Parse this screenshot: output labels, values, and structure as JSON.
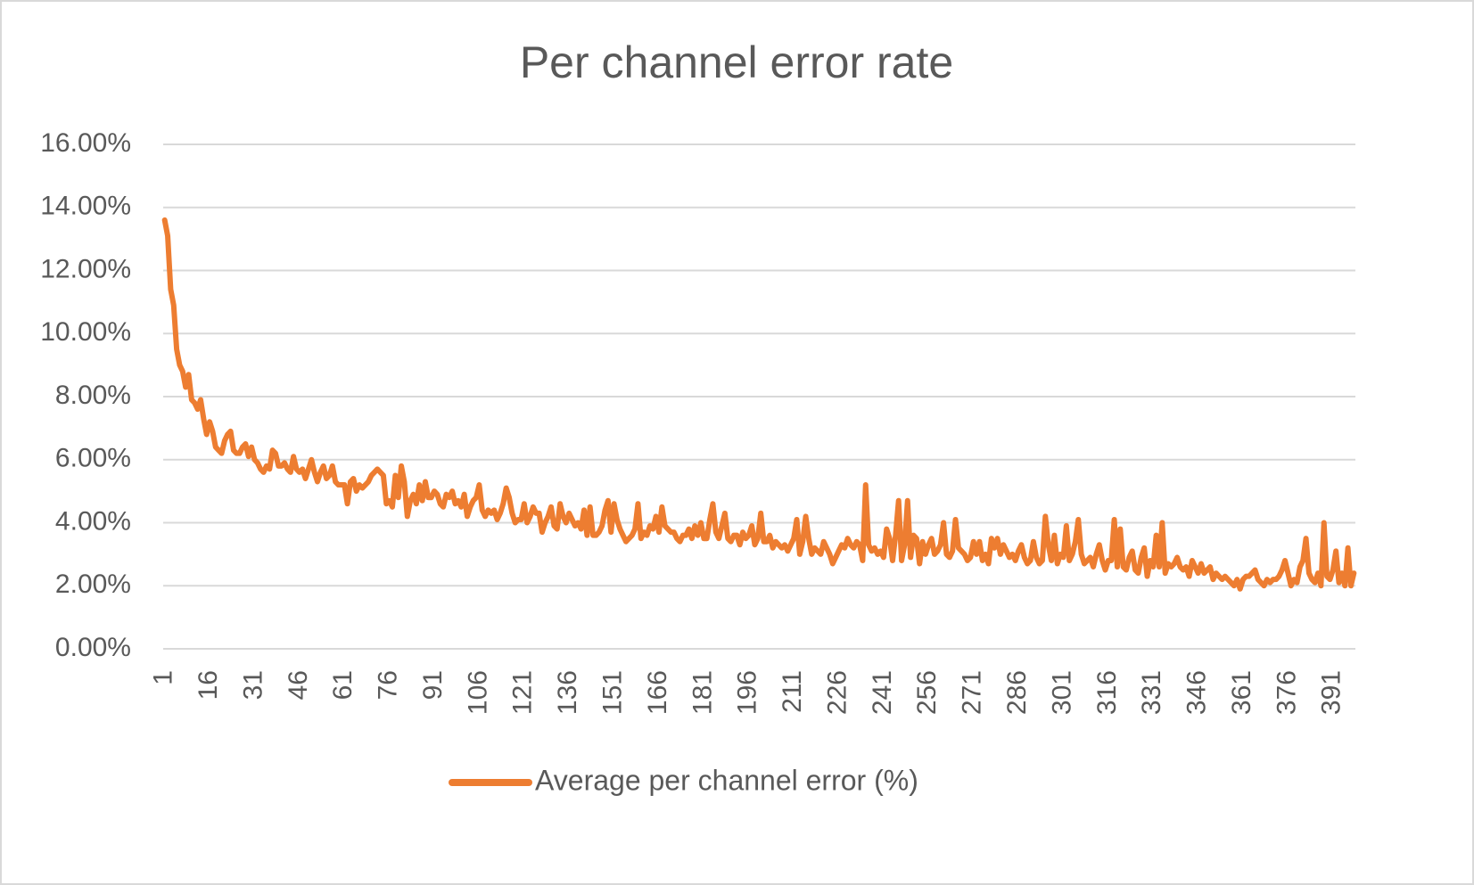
{
  "chart_data": {
    "type": "line",
    "title": "Per channel error rate",
    "categories": [
      "1",
      null,
      null,
      null,
      null,
      null,
      null,
      null,
      null,
      null,
      null,
      null,
      null,
      null,
      null,
      "16",
      null,
      null,
      null,
      null,
      null,
      null,
      null,
      null,
      null,
      null,
      null,
      null,
      null,
      null,
      "31",
      null,
      null,
      null,
      null,
      null,
      null,
      null,
      null,
      null,
      null,
      null,
      null,
      null,
      null,
      "46",
      null,
      null,
      null,
      null,
      null,
      null,
      null,
      null,
      null,
      null,
      null,
      null,
      null,
      null,
      "61",
      null,
      null,
      null,
      null,
      null,
      null,
      null,
      null,
      null,
      null,
      null,
      null,
      null,
      null,
      "76",
      null,
      null,
      null,
      null,
      null,
      null,
      null,
      null,
      null,
      null,
      null,
      null,
      null,
      null,
      "91",
      null,
      null,
      null,
      null,
      null,
      null,
      null,
      null,
      null,
      null,
      null,
      null,
      null,
      null,
      "106",
      null,
      null,
      null,
      null,
      null,
      null,
      null,
      null,
      null,
      null,
      null,
      null,
      null,
      null,
      "121",
      null,
      null,
      null,
      null,
      null,
      null,
      null,
      null,
      null,
      null,
      null,
      null,
      null,
      null,
      "136",
      null,
      null,
      null,
      null,
      null,
      null,
      null,
      null,
      null,
      null,
      null,
      null,
      null,
      null,
      "151",
      null,
      null,
      null,
      null,
      null,
      null,
      null,
      null,
      null,
      null,
      null,
      null,
      null,
      null,
      "166",
      null,
      null,
      null,
      null,
      null,
      null,
      null,
      null,
      null,
      null,
      null,
      null,
      null,
      null,
      "181",
      null,
      null,
      null,
      null,
      null,
      null,
      null,
      null,
      null,
      null,
      null,
      null,
      null,
      null,
      "196",
      null,
      null,
      null,
      null,
      null,
      null,
      null,
      null,
      null,
      null,
      null,
      null,
      null,
      null,
      "211",
      null,
      null,
      null,
      null,
      null,
      null,
      null,
      null,
      null,
      null,
      null,
      null,
      null,
      null,
      "226",
      null,
      null,
      null,
      null,
      null,
      null,
      null,
      null,
      null,
      null,
      null,
      null,
      null,
      null,
      "241",
      null,
      null,
      null,
      null,
      null,
      null,
      null,
      null,
      null,
      null,
      null,
      null,
      null,
      null,
      "256",
      null,
      null,
      null,
      null,
      null,
      null,
      null,
      null,
      null,
      null,
      null,
      null,
      null,
      null,
      "271",
      null,
      null,
      null,
      null,
      null,
      null,
      null,
      null,
      null,
      null,
      null,
      null,
      null,
      null,
      "286",
      null,
      null,
      null,
      null,
      null,
      null,
      null,
      null,
      null,
      null,
      null,
      null,
      null,
      null,
      "301",
      null,
      null,
      null,
      null,
      null,
      null,
      null,
      null,
      null,
      null,
      null,
      null,
      null,
      null,
      "316",
      null,
      null,
      null,
      null,
      null,
      null,
      null,
      null,
      null,
      null,
      null,
      null,
      null,
      null,
      "331",
      null,
      null,
      null,
      null,
      null,
      null,
      null,
      null,
      null,
      null,
      null,
      null,
      null,
      null,
      "346",
      null,
      null,
      null,
      null,
      null,
      null,
      null,
      null,
      null,
      null,
      null,
      null,
      null,
      null,
      "361",
      null,
      null,
      null,
      null,
      null,
      null,
      null,
      null,
      null,
      null,
      null,
      null,
      null,
      null,
      "376",
      null,
      null,
      null,
      null,
      null,
      null,
      null,
      null,
      null,
      null,
      null,
      null,
      null,
      null,
      "391",
      null,
      null,
      null,
      null,
      null,
      null,
      null
    ],
    "series": [
      {
        "name": "Average per channel error (%)",
        "color": "#ed7d31",
        "values": [
          13.6,
          13.1,
          11.4,
          10.9,
          9.5,
          9.0,
          8.8,
          8.3,
          8.7,
          7.9,
          7.8,
          7.6,
          7.9,
          7.3,
          6.8,
          7.2,
          6.9,
          6.4,
          6.3,
          6.2,
          6.6,
          6.8,
          6.9,
          6.3,
          6.2,
          6.2,
          6.4,
          6.5,
          6.1,
          6.4,
          6.0,
          5.9,
          5.7,
          5.6,
          5.8,
          5.7,
          6.3,
          6.2,
          5.8,
          5.8,
          5.9,
          5.7,
          5.6,
          6.1,
          5.7,
          5.6,
          5.7,
          5.4,
          5.7,
          6.0,
          5.6,
          5.3,
          5.6,
          5.8,
          5.4,
          5.5,
          5.8,
          5.3,
          5.2,
          5.2,
          5.2,
          4.6,
          5.3,
          5.4,
          5.0,
          5.2,
          5.1,
          5.2,
          5.3,
          5.5,
          5.6,
          5.7,
          5.6,
          5.5,
          4.6,
          4.7,
          4.5,
          5.5,
          4.8,
          5.8,
          5.3,
          4.2,
          4.7,
          4.9,
          4.6,
          5.2,
          4.7,
          5.3,
          4.8,
          4.8,
          5.0,
          4.9,
          4.6,
          4.5,
          4.9,
          4.8,
          5.0,
          4.6,
          4.7,
          4.5,
          4.9,
          4.2,
          4.5,
          4.7,
          4.8,
          5.2,
          4.4,
          4.2,
          4.4,
          4.3,
          4.4,
          4.1,
          4.3,
          4.6,
          5.1,
          4.8,
          4.3,
          4.0,
          4.1,
          4.1,
          4.6,
          4.0,
          4.2,
          4.5,
          4.3,
          4.3,
          3.7,
          4.0,
          4.2,
          4.5,
          3.9,
          3.8,
          4.6,
          4.2,
          4.0,
          4.3,
          4.1,
          3.9,
          4.0,
          3.8,
          4.4,
          3.6,
          4.5,
          3.6,
          3.6,
          3.7,
          3.9,
          4.4,
          4.7,
          3.7,
          4.6,
          4.1,
          3.8,
          3.6,
          3.4,
          3.5,
          3.6,
          3.8,
          4.6,
          3.5,
          3.7,
          3.6,
          3.9,
          3.8,
          4.2,
          3.7,
          4.5,
          3.9,
          3.8,
          3.7,
          3.7,
          3.5,
          3.4,
          3.6,
          3.6,
          3.8,
          3.5,
          3.9,
          3.6,
          4.0,
          3.5,
          3.5,
          4.1,
          4.6,
          3.7,
          3.5,
          3.9,
          4.3,
          3.5,
          3.4,
          3.6,
          3.6,
          3.3,
          3.7,
          3.5,
          3.6,
          3.9,
          3.3,
          3.5,
          4.3,
          3.4,
          3.4,
          3.6,
          3.2,
          3.4,
          3.3,
          3.2,
          3.3,
          3.1,
          3.3,
          3.5,
          4.1,
          3.0,
          3.4,
          4.2,
          3.5,
          3.0,
          3.2,
          3.1,
          3.0,
          3.4,
          3.2,
          3.0,
          2.7,
          2.9,
          3.1,
          3.3,
          3.2,
          3.5,
          3.3,
          3.2,
          3.4,
          3.3,
          2.8,
          5.2,
          3.3,
          3.1,
          3.2,
          3.0,
          3.1,
          2.9,
          3.8,
          3.5,
          2.8,
          3.6,
          4.7,
          2.8,
          3.3,
          4.7,
          2.9,
          3.6,
          3.5,
          2.7,
          3.4,
          3.0,
          3.3,
          3.5,
          3.0,
          3.1,
          3.3,
          4.0,
          3.0,
          2.9,
          3.1,
          4.1,
          3.2,
          3.1,
          3.0,
          2.8,
          2.9,
          3.4,
          3.0,
          3.4,
          2.8,
          3.0,
          2.7,
          3.5,
          3.2,
          3.5,
          3.0,
          3.3,
          3.1,
          2.9,
          3.0,
          2.8,
          3.1,
          3.3,
          2.9,
          2.7,
          2.8,
          3.4,
          2.9,
          2.7,
          2.8,
          4.2,
          3.3,
          2.8,
          3.6,
          2.7,
          3.0,
          2.9,
          3.9,
          2.8,
          3.0,
          3.4,
          4.1,
          3.0,
          2.7,
          2.8,
          2.9,
          2.6,
          3.0,
          3.3,
          2.8,
          2.5,
          2.8,
          2.8,
          4.1,
          2.6,
          3.8,
          2.6,
          2.5,
          2.9,
          3.1,
          2.5,
          2.4,
          2.9,
          3.2,
          2.3,
          2.8,
          2.6,
          3.6,
          2.6,
          4.0,
          2.4,
          2.7,
          2.6,
          2.7,
          2.9,
          2.6,
          2.5,
          2.6,
          2.3,
          2.8,
          2.6,
          2.4,
          2.7,
          2.4,
          2.5,
          2.6,
          2.2,
          2.4,
          2.3,
          2.2,
          2.3,
          2.2,
          2.1,
          2.0,
          2.2,
          1.9,
          2.2,
          2.3,
          2.3,
          2.4,
          2.5,
          2.2,
          2.1,
          2.0,
          2.2,
          2.1,
          2.2,
          2.2,
          2.3,
          2.5,
          2.8,
          2.4,
          2.0,
          2.2,
          2.1,
          2.6,
          2.8,
          3.5,
          2.4,
          2.2,
          2.1,
          2.4,
          2.0,
          4.0,
          2.3,
          2.2,
          2.5,
          3.1,
          2.1,
          2.4,
          2.0,
          3.2,
          2.0,
          2.4
        ]
      }
    ],
    "ylim": [
      0,
      16
    ],
    "yticks": [
      {
        "value": 0,
        "label": "0.00%"
      },
      {
        "value": 2,
        "label": "2.00%"
      },
      {
        "value": 4,
        "label": "4.00%"
      },
      {
        "value": 6,
        "label": "6.00%"
      },
      {
        "value": 8,
        "label": "8.00%"
      },
      {
        "value": 10,
        "label": "10.00%"
      },
      {
        "value": 12,
        "label": "12.00%"
      },
      {
        "value": 14,
        "label": "14.00%"
      },
      {
        "value": 16,
        "label": "16.00%"
      }
    ],
    "grid": true,
    "legend": "bottom"
  }
}
